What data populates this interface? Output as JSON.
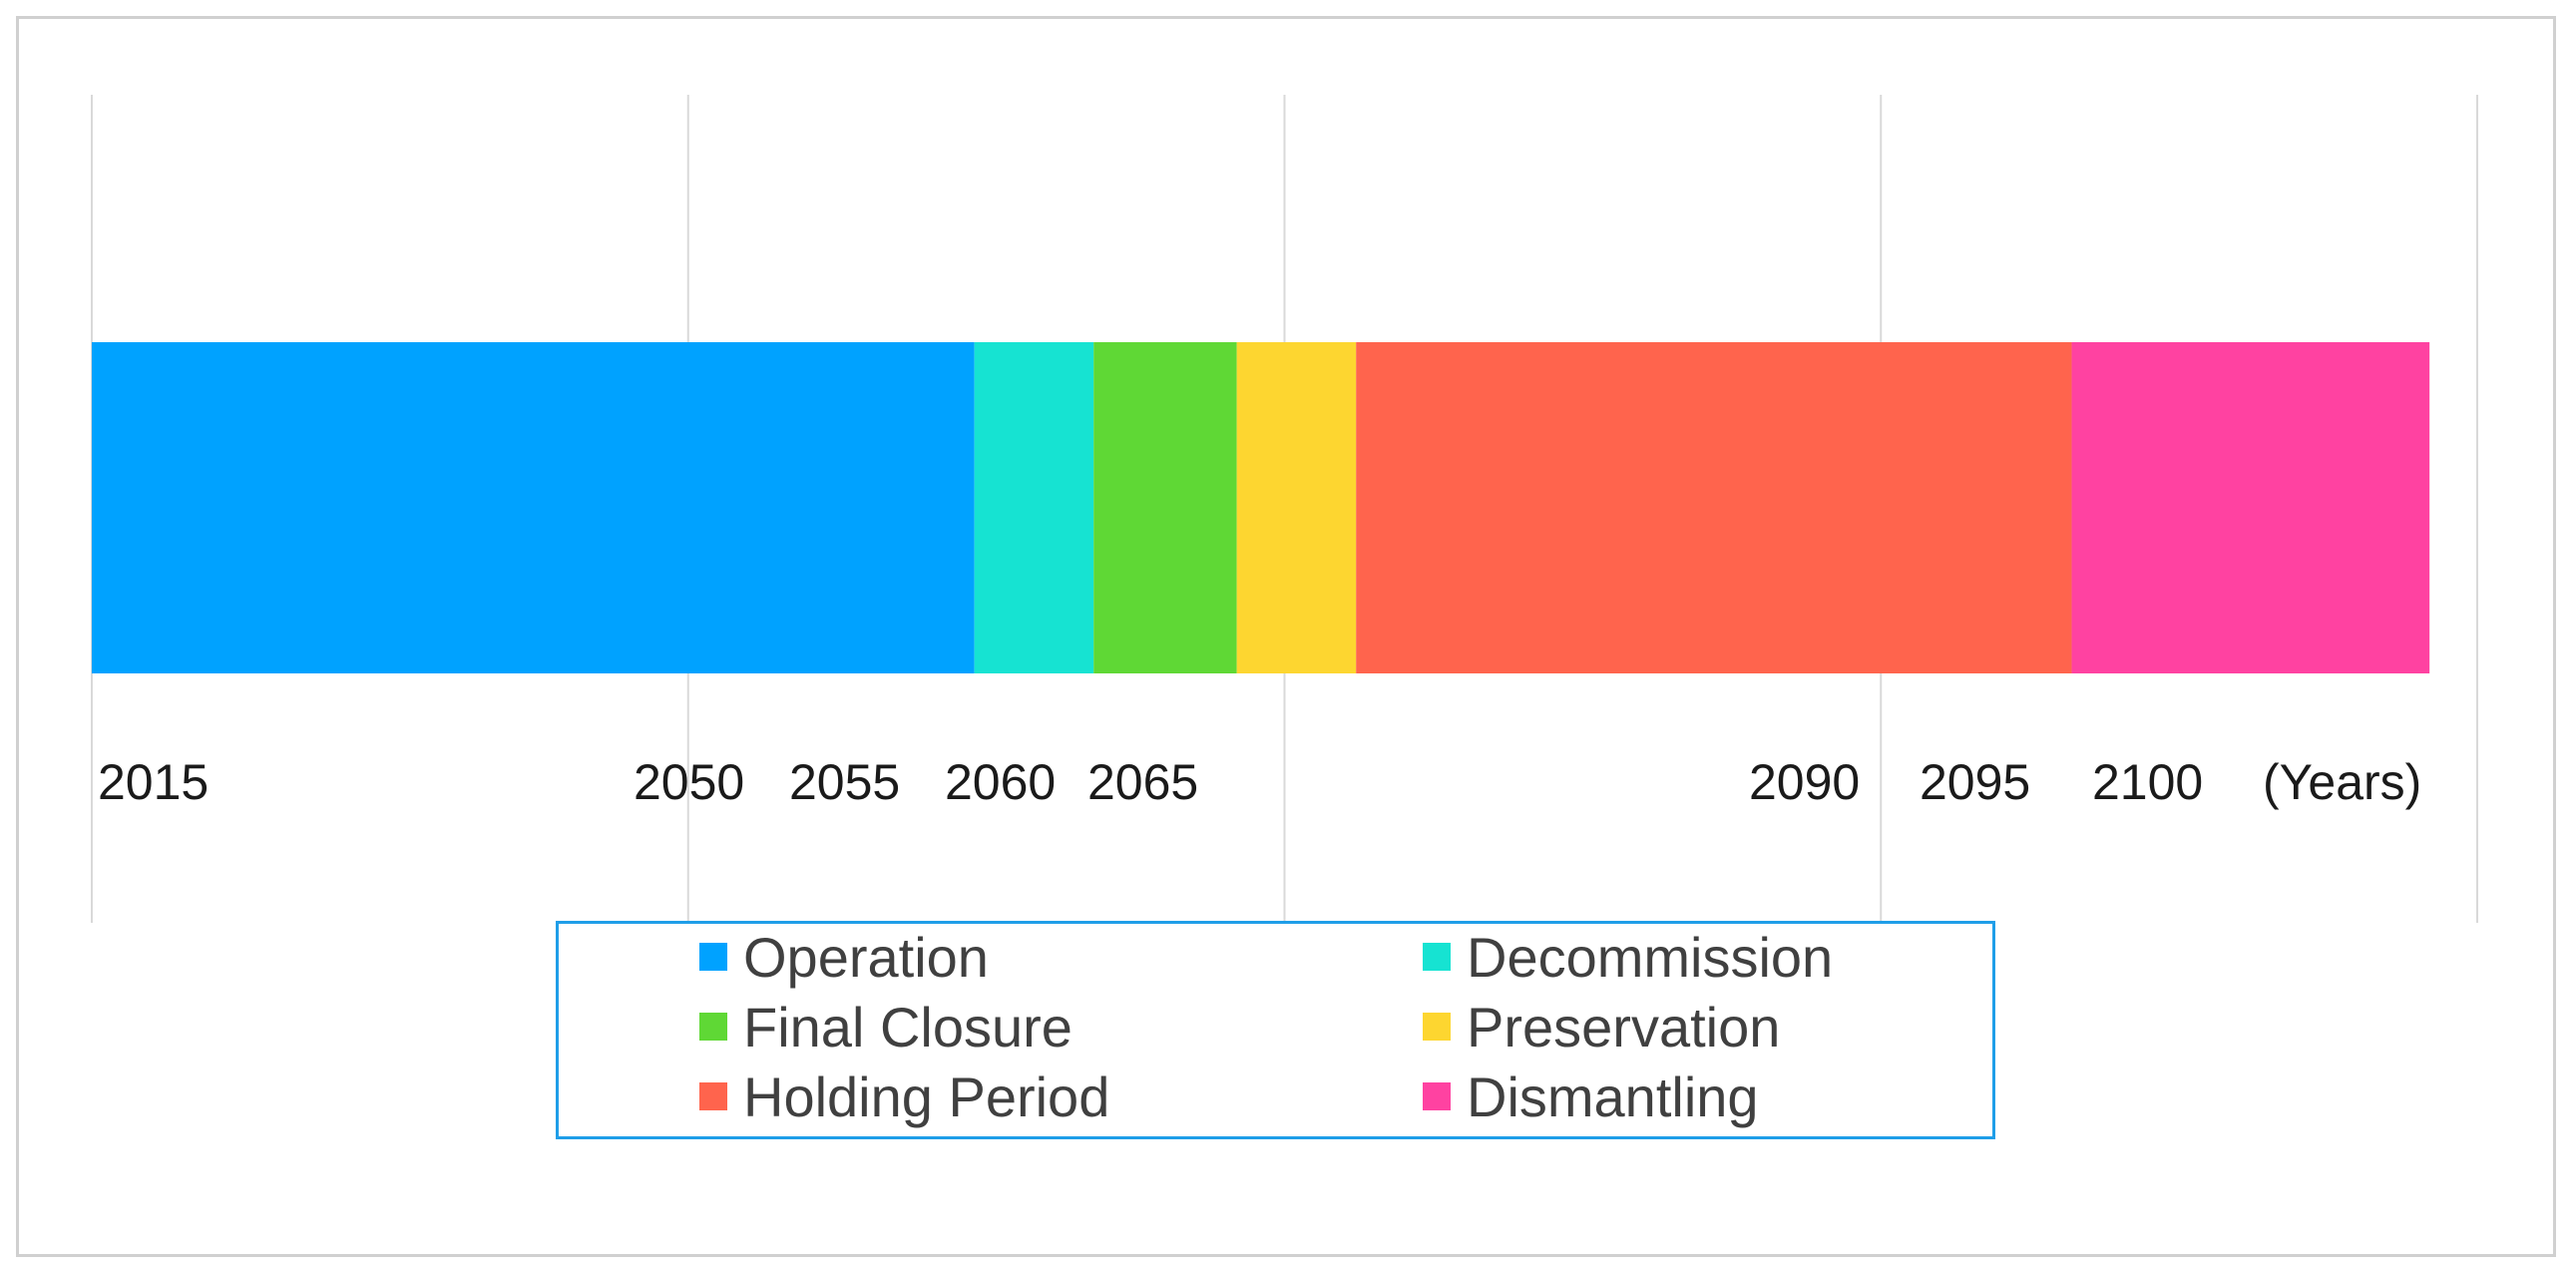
{
  "chart_data": {
    "type": "bar",
    "orientation": "horizontal",
    "stacked": true,
    "x_unit_label": "(Years)",
    "xlim": [
      2015,
      2115
    ],
    "xticks": [
      2015,
      2050,
      2055,
      2060,
      2065,
      2090,
      2095,
      2100
    ],
    "grid": true,
    "legend_position": "bottom",
    "series": [
      {
        "name": "Operation",
        "start": 2015,
        "end": 2052,
        "color": "#00a2ff"
      },
      {
        "name": "Decommission",
        "start": 2052,
        "end": 2057,
        "color": "#16e3d2"
      },
      {
        "name": "Final Closure",
        "start": 2057,
        "end": 2063,
        "color": "#5fd835"
      },
      {
        "name": "Preservation",
        "start": 2063,
        "end": 2068,
        "color": "#fdd630"
      },
      {
        "name": "Holding Period",
        "start": 2068,
        "end": 2098,
        "color": "#ff644d"
      },
      {
        "name": "Dismantling",
        "start": 2098,
        "end": 2113,
        "color": "#ff42a1"
      }
    ]
  }
}
